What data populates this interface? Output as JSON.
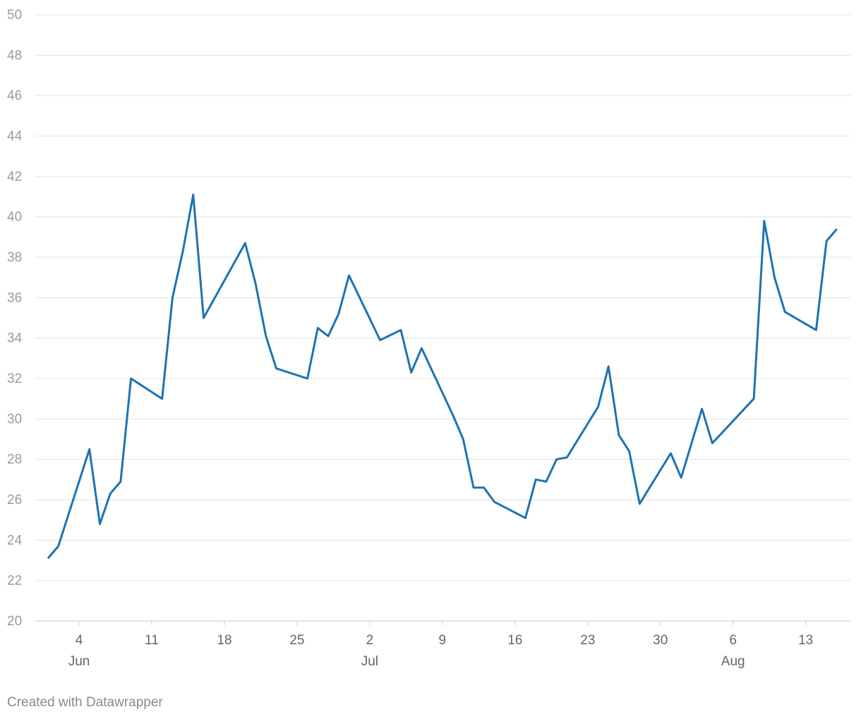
{
  "chart_data": {
    "type": "line",
    "x": [
      "06-01",
      "06-02",
      "06-05",
      "06-06",
      "06-07",
      "06-08",
      "06-09",
      "06-12",
      "06-13",
      "06-14",
      "06-15",
      "06-16",
      "06-20",
      "06-21",
      "06-22",
      "06-23",
      "06-26",
      "06-27",
      "06-28",
      "06-29",
      "06-30",
      "07-03",
      "07-05",
      "07-06",
      "07-07",
      "07-10",
      "07-11",
      "07-12",
      "07-13",
      "07-14",
      "07-17",
      "07-18",
      "07-19",
      "07-20",
      "07-21",
      "07-24",
      "07-25",
      "07-26",
      "07-27",
      "07-28",
      "07-31",
      "08-01",
      "08-03",
      "08-04",
      "08-08",
      "08-09",
      "08-10",
      "08-11",
      "08-14",
      "08-15",
      "08-16"
    ],
    "series": [
      {
        "color": "#1d73b3",
        "values": [
          23.1,
          23.7,
          28.5,
          24.8,
          26.3,
          26.9,
          32.0,
          31.0,
          36.0,
          38.3,
          41.1,
          35.0,
          38.7,
          36.7,
          34.1,
          32.5,
          32.0,
          34.5,
          34.1,
          35.2,
          37.1,
          33.9,
          34.4,
          32.3,
          33.5,
          30.2,
          29.0,
          26.6,
          26.6,
          25.9,
          25.1,
          27.0,
          26.9,
          28.0,
          28.1,
          30.6,
          32.6,
          29.2,
          28.4,
          25.8,
          28.3,
          27.1,
          30.5,
          28.8,
          31.0,
          39.8,
          37.0,
          35.3,
          34.4,
          38.8,
          39.4
        ]
      }
    ],
    "xlim": [
      "05-31",
      "08-17"
    ],
    "xticks": [
      {
        "value": "06-04",
        "label": "4"
      },
      {
        "value": "06-11",
        "label": "11"
      },
      {
        "value": "06-18",
        "label": "18"
      },
      {
        "value": "06-25",
        "label": "25"
      },
      {
        "value": "07-02",
        "label": "2"
      },
      {
        "value": "07-09",
        "label": "9"
      },
      {
        "value": "07-16",
        "label": "16"
      },
      {
        "value": "07-23",
        "label": "23"
      },
      {
        "value": "07-30",
        "label": "30"
      },
      {
        "value": "08-06",
        "label": "6"
      },
      {
        "value": "08-13",
        "label": "13"
      }
    ],
    "xtick_months": [
      {
        "value": "06-04",
        "label": "Jun"
      },
      {
        "value": "07-02",
        "label": "Jul"
      },
      {
        "value": "08-06",
        "label": "Aug"
      }
    ],
    "ylim": [
      20,
      50
    ],
    "yticks": [
      20,
      22,
      24,
      26,
      28,
      30,
      32,
      34,
      36,
      38,
      40,
      42,
      44,
      46,
      48,
      50
    ],
    "grid": true,
    "footer": "Created with Datawrapper"
  }
}
